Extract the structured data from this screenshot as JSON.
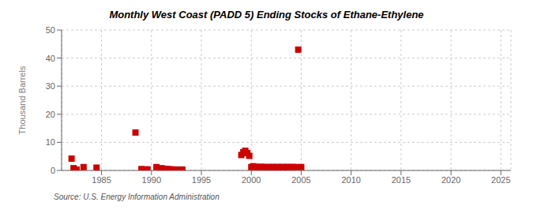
{
  "chart_data": {
    "type": "scatter",
    "title": "Monthly West Coast (PADD 5) Ending Stocks of Ethane-Ethylene",
    "y_label": "Thousand Barrels",
    "annotation": "Source: U.S. Energy Information Administration",
    "color": "#cc0000",
    "marker": "square",
    "grid": true,
    "xlim": [
      1981,
      2026
    ],
    "ylim": [
      0,
      50
    ],
    "xticks": [
      1985,
      1990,
      1995,
      2000,
      2005,
      2010,
      2015,
      2020,
      2025
    ],
    "yticks": [
      0,
      10,
      20,
      30,
      40,
      50
    ],
    "x": [
      1982.0,
      1982.2,
      1982.5,
      1983.2,
      1984.5,
      1988.4,
      1989.0,
      1989.6,
      1990.5,
      1991.0,
      1991.2,
      1991.5,
      1991.7,
      1991.9,
      1992.1,
      1992.3,
      1992.5,
      1992.7,
      1992.9,
      1993.1,
      1999.0,
      1999.2,
      1999.4,
      1999.6,
      1999.8,
      2000.0,
      2000.2,
      2000.4,
      2000.6,
      2001.0,
      2001.2,
      2001.5,
      2001.7,
      2002.0,
      2002.2,
      2002.5,
      2002.7,
      2003.0,
      2003.2,
      2003.5,
      2003.7,
      2004.0,
      2004.2,
      2004.5,
      2004.7,
      2005.0
    ],
    "values": [
      4.2,
      0.8,
      0.3,
      1.2,
      1.0,
      13.5,
      0.5,
      0.4,
      1.2,
      0.8,
      0.6,
      0.5,
      0.4,
      0.4,
      0.3,
      0.3,
      0.3,
      0.3,
      0.3,
      0.3,
      5.5,
      6.5,
      7.0,
      6.2,
      5.2,
      1.2,
      1.5,
      1.3,
      1.2,
      1.3,
      1.2,
      1.2,
      1.2,
      1.2,
      1.2,
      1.2,
      1.2,
      1.2,
      1.2,
      1.2,
      1.2,
      1.2,
      1.2,
      1.2,
      43.0,
      1.2
    ]
  }
}
